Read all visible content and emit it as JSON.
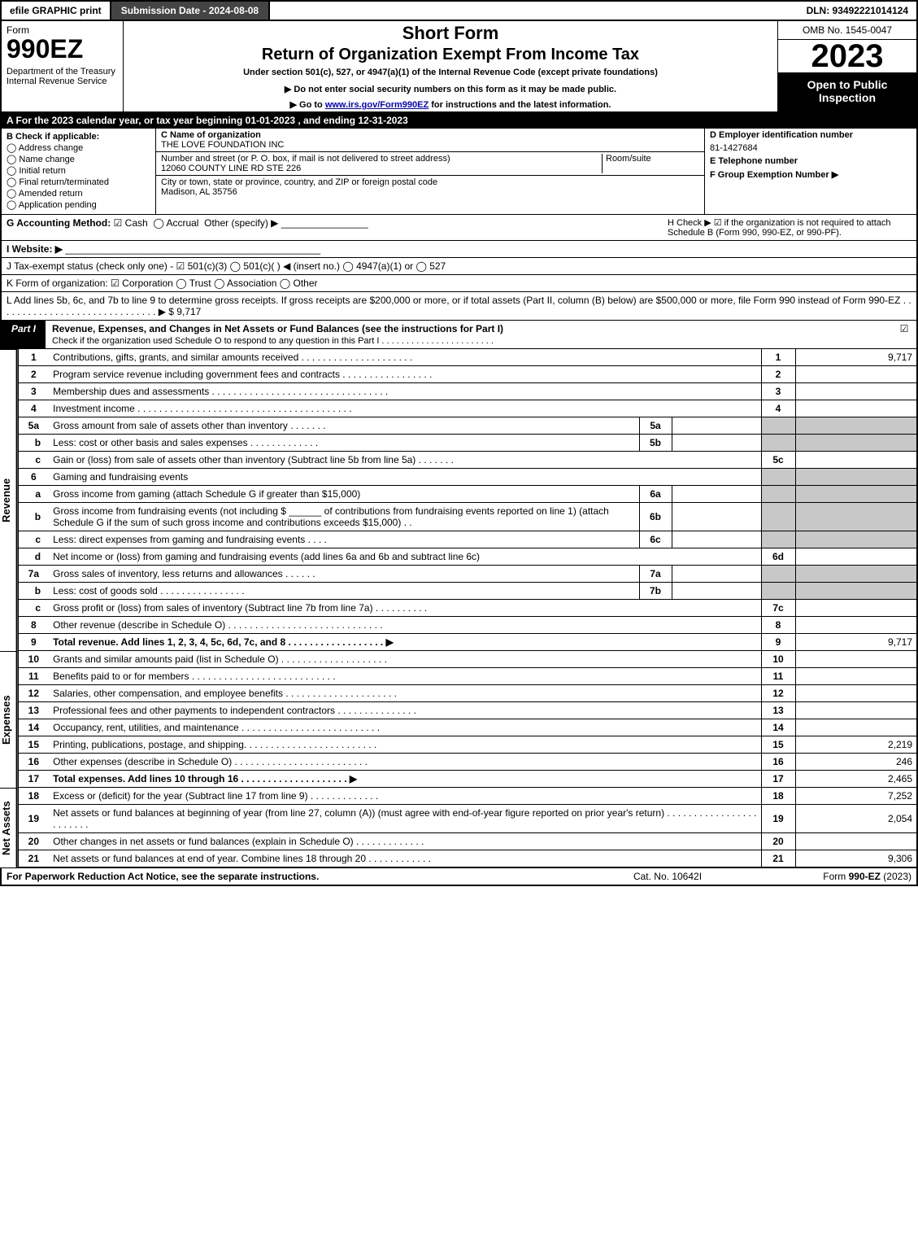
{
  "top": {
    "efile": "efile GRAPHIC print",
    "submission": "Submission Date - 2024-08-08",
    "dln": "DLN: 93492221014124"
  },
  "header": {
    "form_word": "Form",
    "form_num": "990EZ",
    "dept": "Department of the Treasury\nInternal Revenue Service",
    "short": "Short Form",
    "return": "Return of Organization Exempt From Income Tax",
    "under": "Under section 501(c), 527, or 4947(a)(1) of the Internal Revenue Code (except private foundations)",
    "donot": "▶ Do not enter social security numbers on this form as it may be made public.",
    "goto_pre": "▶ Go to ",
    "goto_link": "www.irs.gov/Form990EZ",
    "goto_post": " for instructions and the latest information.",
    "omb": "OMB No. 1545-0047",
    "year": "2023",
    "open": "Open to Public Inspection"
  },
  "rowA": "A  For the 2023 calendar year, or tax year beginning 01-01-2023 , and ending 12-31-2023",
  "B": {
    "title": "B  Check if applicable:",
    "opts": [
      "Address change",
      "Name change",
      "Initial return",
      "Final return/terminated",
      "Amended return",
      "Application pending"
    ]
  },
  "C": {
    "name_lab": "C Name of organization",
    "name_val": "THE LOVE FOUNDATION INC",
    "addr_lab": "Number and street (or P. O. box, if mail is not delivered to street address)",
    "room_lab": "Room/suite",
    "addr_val": "12060 COUNTY LINE RD STE 226",
    "city_lab": "City or town, state or province, country, and ZIP or foreign postal code",
    "city_val": "Madison, AL  35756"
  },
  "D": {
    "ein_lab": "D Employer identification number",
    "ein_val": "81-1427684",
    "tel_lab": "E Telephone number",
    "tel_val": "",
    "grp_lab": "F Group Exemption Number   ▶",
    "grp_val": ""
  },
  "G": {
    "lab": "G Accounting Method:",
    "cash": "Cash",
    "accrual": "Accrual",
    "other": "Other (specify) ▶"
  },
  "H": "H  Check ▶ ☑ if the organization is not required to attach Schedule B (Form 990, 990-EZ, or 990-PF).",
  "I": "I Website: ▶",
  "J": "J Tax-exempt status (check only one) - ☑ 501(c)(3)  ◯ 501(c)(  ) ◀ (insert no.)  ◯ 4947(a)(1) or  ◯ 527",
  "K": "K Form of organization:  ☑ Corporation   ◯ Trust   ◯ Association   ◯ Other",
  "L": {
    "text": "L Add lines 5b, 6c, and 7b to line 9 to determine gross receipts. If gross receipts are $200,000 or more, or if total assets (Part II, column (B) below) are $500,000 or more, file Form 990 instead of Form 990-EZ  . . . . . . . . . . . . . . . . . . . . . . . . . . . . . .  ▶ $ ",
    "val": "9,717"
  },
  "part1": {
    "tab": "Part I",
    "title": "Revenue, Expenses, and Changes in Net Assets or Fund Balances (see the instructions for Part I)",
    "sub": "Check if the organization used Schedule O to respond to any question in this Part I . . . . . . . . . . . . . . . . . . . . . . .",
    "chk": "☑"
  },
  "sections": {
    "revenue": "Revenue",
    "expenses": "Expenses",
    "netassets": "Net Assets"
  },
  "lines": {
    "l1": {
      "n": "1",
      "d": "Contributions, gifts, grants, and similar amounts received . . . . . . . . . . . . . . . . . . . . .",
      "r": "1",
      "v": "9,717"
    },
    "l2": {
      "n": "2",
      "d": "Program service revenue including government fees and contracts . . . . . . . . . . . . . . . . .",
      "r": "2",
      "v": ""
    },
    "l3": {
      "n": "3",
      "d": "Membership dues and assessments . . . . . . . . . . . . . . . . . . . . . . . . . . . . . . . . .",
      "r": "3",
      "v": ""
    },
    "l4": {
      "n": "4",
      "d": "Investment income . . . . . . . . . . . . . . . . . . . . . . . . . . . . . . . . . . . . . . . .",
      "r": "4",
      "v": ""
    },
    "l5a": {
      "n": "5a",
      "d": "Gross amount from sale of assets other than inventory . . . . . . .",
      "sn": "5a",
      "sv": ""
    },
    "l5b": {
      "n": "b",
      "d": "Less: cost or other basis and sales expenses . . . . . . . . . . . . .",
      "sn": "5b",
      "sv": ""
    },
    "l5c": {
      "n": "c",
      "d": "Gain or (loss) from sale of assets other than inventory (Subtract line 5b from line 5a) . . . . . . .",
      "r": "5c",
      "v": ""
    },
    "l6": {
      "n": "6",
      "d": "Gaming and fundraising events"
    },
    "l6a": {
      "n": "a",
      "d": "Gross income from gaming (attach Schedule G if greater than $15,000)",
      "sn": "6a",
      "sv": ""
    },
    "l6b": {
      "n": "b",
      "d1": "Gross income from fundraising events (not including $",
      "d2": "of contributions from fundraising events reported on line 1) (attach Schedule G if the sum of such gross income and contributions exceeds $15,000)    . .",
      "sn": "6b",
      "sv": ""
    },
    "l6c": {
      "n": "c",
      "d": "Less: direct expenses from gaming and fundraising events   . . . .",
      "sn": "6c",
      "sv": ""
    },
    "l6d": {
      "n": "d",
      "d": "Net income or (loss) from gaming and fundraising events (add lines 6a and 6b and subtract line 6c)",
      "r": "6d",
      "v": ""
    },
    "l7a": {
      "n": "7a",
      "d": "Gross sales of inventory, less returns and allowances . . . . . .",
      "sn": "7a",
      "sv": ""
    },
    "l7b": {
      "n": "b",
      "d": "Less: cost of goods sold         . . . . . . . . . . . . . . . .",
      "sn": "7b",
      "sv": ""
    },
    "l7c": {
      "n": "c",
      "d": "Gross profit or (loss) from sales of inventory (Subtract line 7b from line 7a) . . . . . . . . . .",
      "r": "7c",
      "v": ""
    },
    "l8": {
      "n": "8",
      "d": "Other revenue (describe in Schedule O) . . . . . . . . . . . . . . . . . . . . . . . . . . . . .",
      "r": "8",
      "v": ""
    },
    "l9": {
      "n": "9",
      "d": "Total revenue. Add lines 1, 2, 3, 4, 5c, 6d, 7c, and 8  . . . . . . . . . . . . . . . . . .   ▶",
      "r": "9",
      "v": "9,717"
    },
    "l10": {
      "n": "10",
      "d": "Grants and similar amounts paid (list in Schedule O) . . . . . . . . . . . . . . . . . . . .",
      "r": "10",
      "v": ""
    },
    "l11": {
      "n": "11",
      "d": "Benefits paid to or for members        . . . . . . . . . . . . . . . . . . . . . . . . . . .",
      "r": "11",
      "v": ""
    },
    "l12": {
      "n": "12",
      "d": "Salaries, other compensation, and employee benefits . . . . . . . . . . . . . . . . . . . . .",
      "r": "12",
      "v": ""
    },
    "l13": {
      "n": "13",
      "d": "Professional fees and other payments to independent contractors . . . . . . . . . . . . . . .",
      "r": "13",
      "v": ""
    },
    "l14": {
      "n": "14",
      "d": "Occupancy, rent, utilities, and maintenance . . . . . . . . . . . . . . . . . . . . . . . . . .",
      "r": "14",
      "v": ""
    },
    "l15": {
      "n": "15",
      "d": "Printing, publications, postage, and shipping. . . . . . . . . . . . . . . . . . . . . . . . .",
      "r": "15",
      "v": "2,219"
    },
    "l16": {
      "n": "16",
      "d": "Other expenses (describe in Schedule O)     . . . . . . . . . . . . . . . . . . . . . . . . .",
      "r": "16",
      "v": "246"
    },
    "l17": {
      "n": "17",
      "d": "Total expenses. Add lines 10 through 16     . . . . . . . . . . . . . . . . . . . .   ▶",
      "r": "17",
      "v": "2,465"
    },
    "l18": {
      "n": "18",
      "d": "Excess or (deficit) for the year (Subtract line 17 from line 9)         . . . . . . . . . . . . .",
      "r": "18",
      "v": "7,252"
    },
    "l19": {
      "n": "19",
      "d": "Net assets or fund balances at beginning of year (from line 27, column (A)) (must agree with end-of-year figure reported on prior year's return) . . . . . . . . . . . . . . . . . . . . . . . .",
      "r": "19",
      "v": "2,054"
    },
    "l20": {
      "n": "20",
      "d": "Other changes in net assets or fund balances (explain in Schedule O) . . . . . . . . . . . . .",
      "r": "20",
      "v": ""
    },
    "l21": {
      "n": "21",
      "d": "Net assets or fund balances at end of year. Combine lines 18 through 20 . . . . . . . . . . . .",
      "r": "21",
      "v": "9,306"
    }
  },
  "footer": {
    "l": "For Paperwork Reduction Act Notice, see the separate instructions.",
    "c": "Cat. No. 10642I",
    "r": "Form 990-EZ (2023)"
  }
}
